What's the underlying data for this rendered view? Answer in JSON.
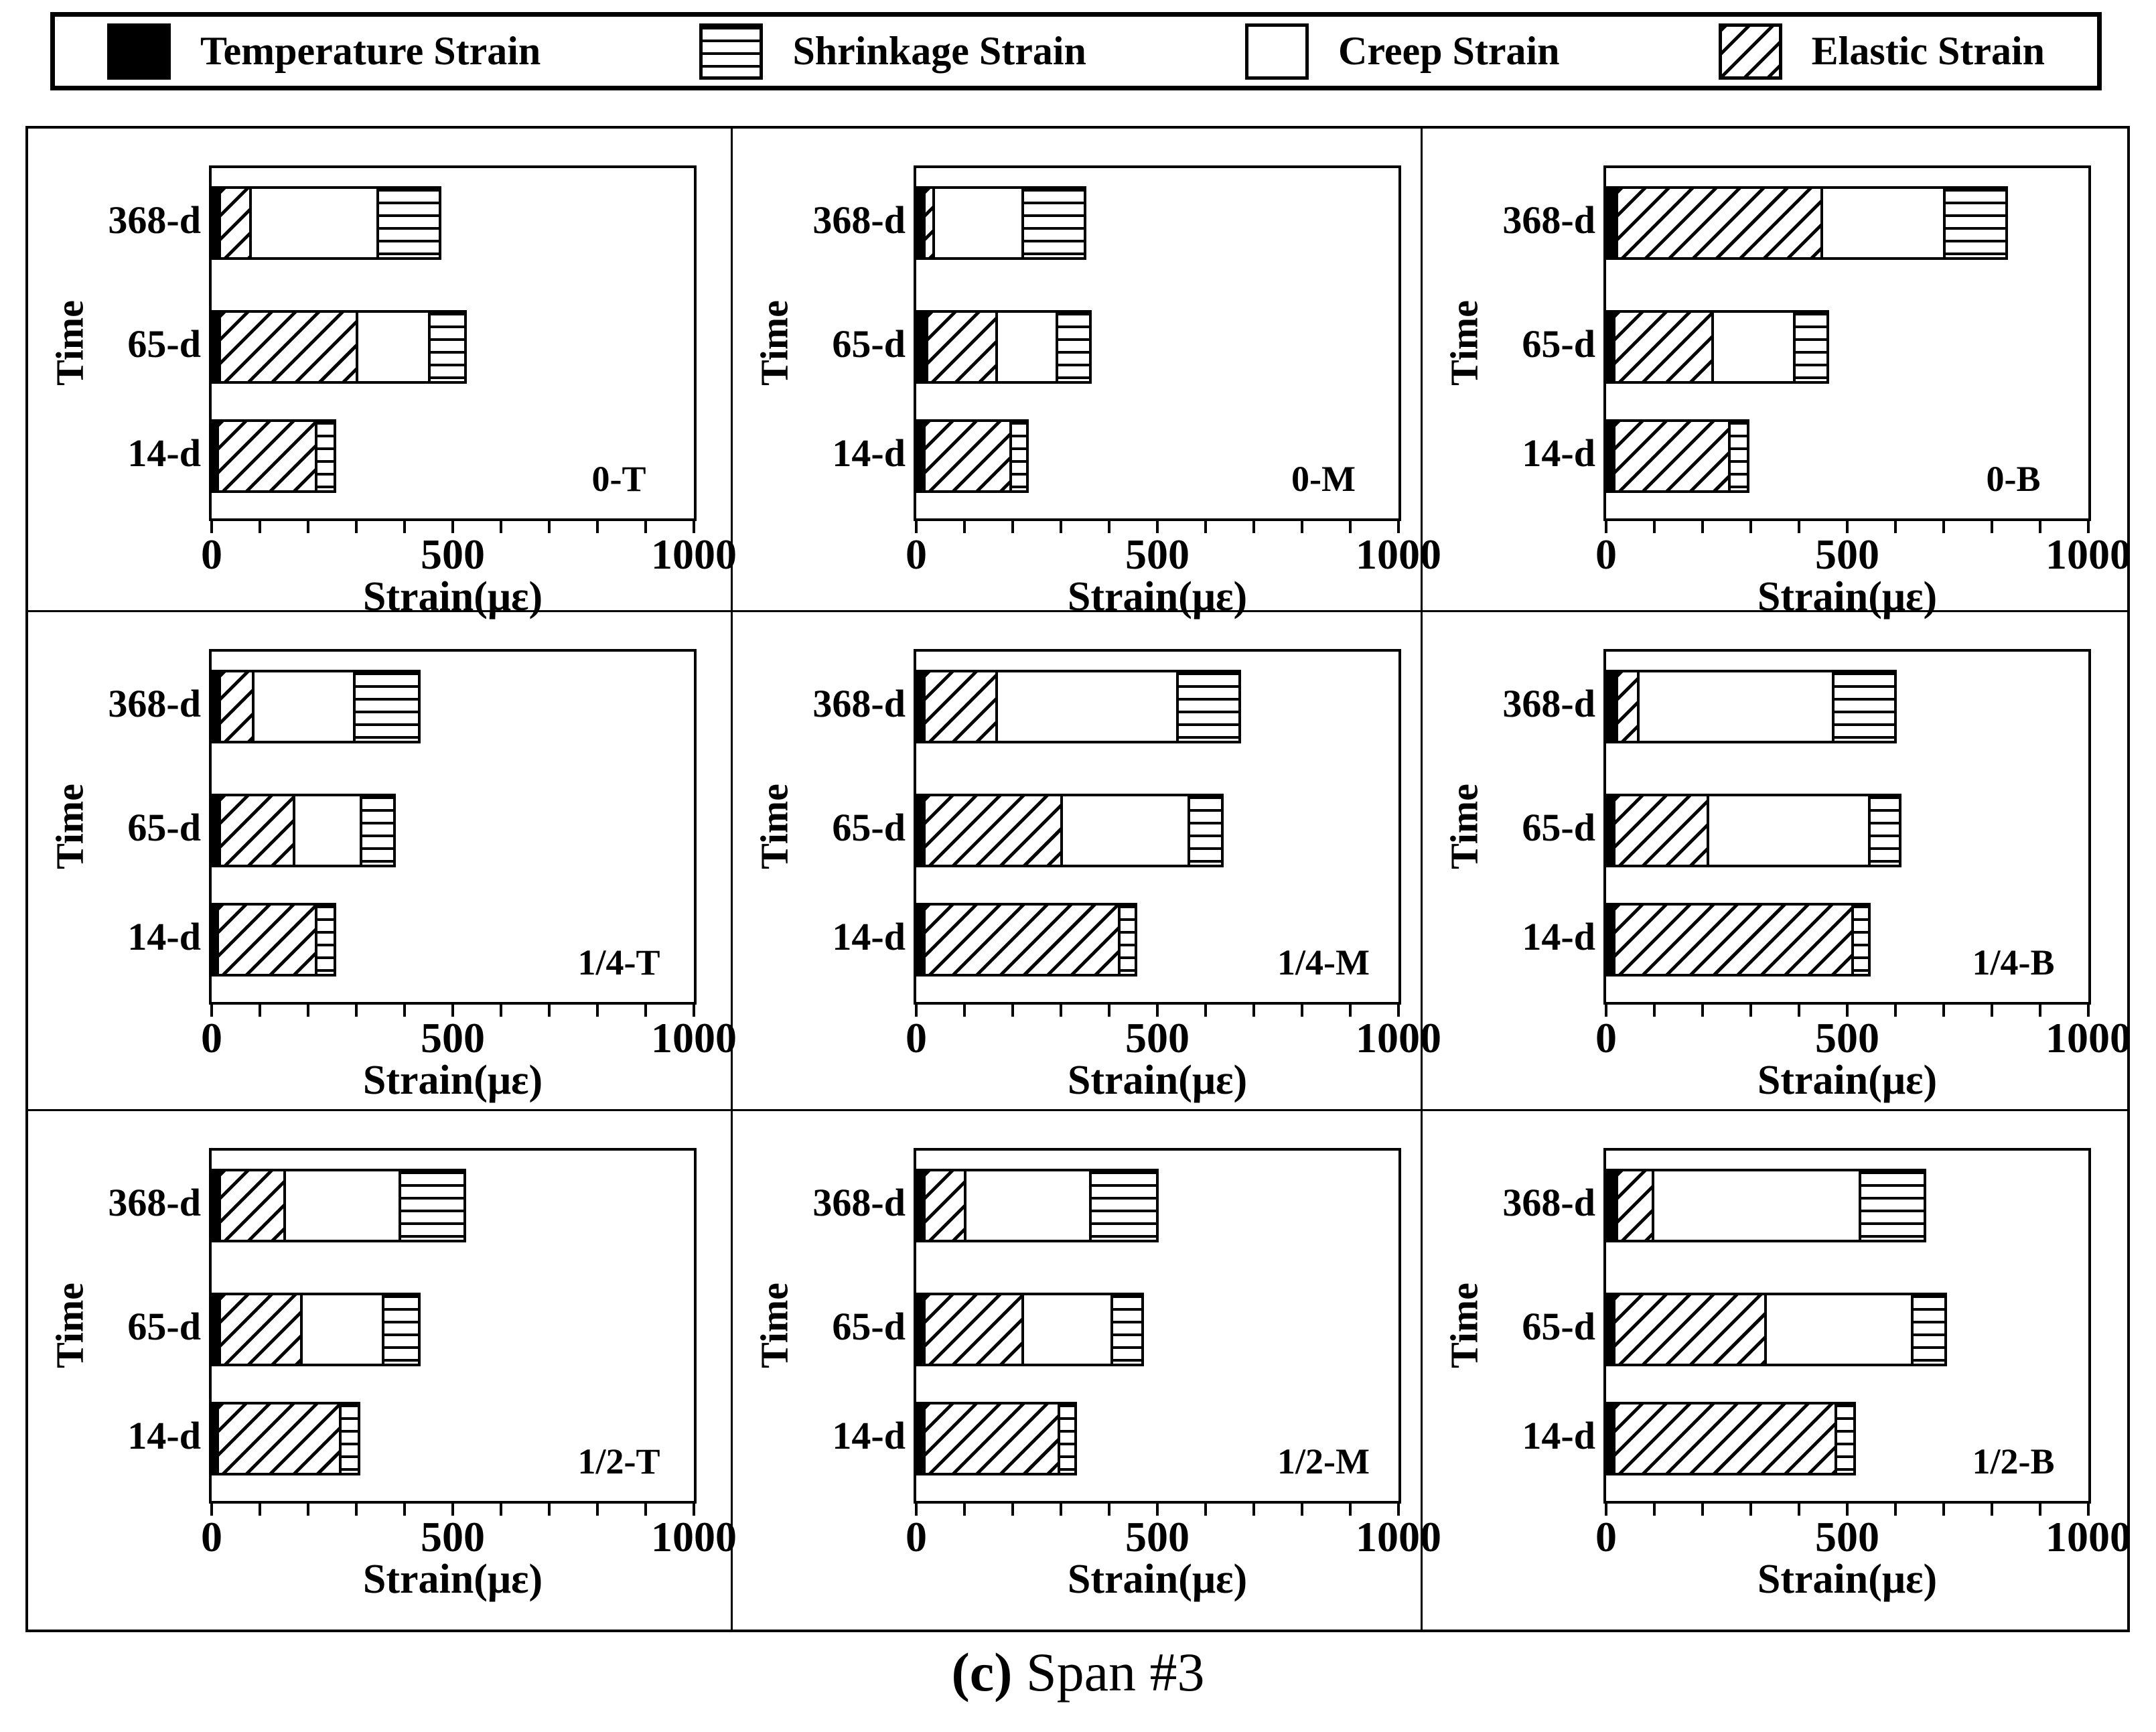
{
  "figure": {
    "caption": {
      "prefix": "(c)",
      "text": " Span #3"
    }
  },
  "colors": {
    "ink": "#000000",
    "background": "#ffffff"
  },
  "legend": {
    "items": [
      {
        "label": "Temperature Strain",
        "pattern": "solid-black"
      },
      {
        "label": "Shrinkage Strain",
        "pattern": "horizontal-lines"
      },
      {
        "label": "Creep Strain",
        "pattern": "plain-white"
      },
      {
        "label": "Elastic Strain",
        "pattern": "diagonal-hatch"
      }
    ]
  },
  "axis": {
    "xlabel": "Strain(με)",
    "ylabel": "Time",
    "x_tick_labels": [
      "0",
      "500",
      "1000"
    ],
    "xlim": [
      0,
      1000
    ],
    "minor_tick_step": 100,
    "categories": [
      "368-d",
      "65-d",
      "14-d"
    ]
  },
  "chart_data": [
    {
      "type": "bar",
      "orientation": "horizontal",
      "stacked": true,
      "panel": "0-T",
      "categories": [
        "368-d",
        "65-d",
        "14-d"
      ],
      "series": [
        {
          "name": "Temperature Strain",
          "values": [
            20,
            20,
            15
          ]
        },
        {
          "name": "Elastic Strain",
          "values": [
            70,
            290,
            210
          ]
        },
        {
          "name": "Creep Strain",
          "values": [
            270,
            155,
            0
          ]
        },
        {
          "name": "Shrinkage Strain",
          "values": [
            135,
            80,
            45
          ]
        }
      ],
      "xlabel": "Strain(με)",
      "ylabel": "Time",
      "xlim": [
        0,
        1000
      ],
      "x_ticks": [
        0,
        500,
        1000
      ]
    },
    {
      "type": "bar",
      "orientation": "horizontal",
      "stacked": true,
      "panel": "0-M",
      "categories": [
        "368-d",
        "65-d",
        "14-d"
      ],
      "series": [
        {
          "name": "Temperature Strain",
          "values": [
            20,
            25,
            20
          ]
        },
        {
          "name": "Elastic Strain",
          "values": [
            25,
            150,
            185
          ]
        },
        {
          "name": "Creep Strain",
          "values": [
            190,
            130,
            0
          ]
        },
        {
          "name": "Shrinkage Strain",
          "values": [
            135,
            75,
            40
          ]
        }
      ],
      "xlabel": "Strain(με)",
      "ylabel": "Time",
      "xlim": [
        0,
        1000
      ],
      "x_ticks": [
        0,
        500,
        1000
      ]
    },
    {
      "type": "bar",
      "orientation": "horizontal",
      "stacked": true,
      "panel": "0-B",
      "categories": [
        "368-d",
        "65-d",
        "14-d"
      ],
      "series": [
        {
          "name": "Temperature Strain",
          "values": [
            25,
            20,
            20
          ]
        },
        {
          "name": "Elastic Strain",
          "values": [
            430,
            210,
            245
          ]
        },
        {
          "name": "Creep Strain",
          "values": [
            260,
            175,
            0
          ]
        },
        {
          "name": "Shrinkage Strain",
          "values": [
            135,
            75,
            45
          ]
        }
      ],
      "xlabel": "Strain(με)",
      "ylabel": "Time",
      "xlim": [
        0,
        1000
      ],
      "x_ticks": [
        0,
        500,
        1000
      ]
    },
    {
      "type": "bar",
      "orientation": "horizontal",
      "stacked": true,
      "panel": "1/4-T",
      "categories": [
        "368-d",
        "65-d",
        "14-d"
      ],
      "series": [
        {
          "name": "Temperature Strain",
          "values": [
            20,
            20,
            15
          ]
        },
        {
          "name": "Elastic Strain",
          "values": [
            75,
            160,
            210
          ]
        },
        {
          "name": "Creep Strain",
          "values": [
            215,
            145,
            0
          ]
        },
        {
          "name": "Shrinkage Strain",
          "values": [
            140,
            75,
            45
          ]
        }
      ],
      "xlabel": "Strain(με)",
      "ylabel": "Time",
      "xlim": [
        0,
        1000
      ],
      "x_ticks": [
        0,
        500,
        1000
      ]
    },
    {
      "type": "bar",
      "orientation": "horizontal",
      "stacked": true,
      "panel": "1/4-M",
      "categories": [
        "368-d",
        "65-d",
        "14-d"
      ],
      "series": [
        {
          "name": "Temperature Strain",
          "values": [
            20,
            20,
            20
          ]
        },
        {
          "name": "Elastic Strain",
          "values": [
            155,
            290,
            410
          ]
        },
        {
          "name": "Creep Strain",
          "values": [
            380,
            270,
            0
          ]
        },
        {
          "name": "Shrinkage Strain",
          "values": [
            135,
            75,
            40
          ]
        }
      ],
      "xlabel": "Strain(με)",
      "ylabel": "Time",
      "xlim": [
        0,
        1000
      ],
      "x_ticks": [
        0,
        500,
        1000
      ]
    },
    {
      "type": "bar",
      "orientation": "horizontal",
      "stacked": true,
      "panel": "1/4-B",
      "categories": [
        "368-d",
        "65-d",
        "14-d"
      ],
      "series": [
        {
          "name": "Temperature Strain",
          "values": [
            25,
            20,
            20
          ]
        },
        {
          "name": "Elastic Strain",
          "values": [
            50,
            200,
            500
          ]
        },
        {
          "name": "Creep Strain",
          "values": [
            410,
            340,
            0
          ]
        },
        {
          "name": "Shrinkage Strain",
          "values": [
            135,
            70,
            40
          ]
        }
      ],
      "xlabel": "Strain(με)",
      "ylabel": "Time",
      "xlim": [
        0,
        1000
      ],
      "x_ticks": [
        0,
        500,
        1000
      ]
    },
    {
      "type": "bar",
      "orientation": "horizontal",
      "stacked": true,
      "panel": "1/2-T",
      "categories": [
        "368-d",
        "65-d",
        "14-d"
      ],
      "series": [
        {
          "name": "Temperature Strain",
          "values": [
            20,
            20,
            15
          ]
        },
        {
          "name": "Elastic Strain",
          "values": [
            140,
            175,
            260
          ]
        },
        {
          "name": "Creep Strain",
          "values": [
            245,
            175,
            0
          ]
        },
        {
          "name": "Shrinkage Strain",
          "values": [
            140,
            80,
            45
          ]
        }
      ],
      "xlabel": "Strain(με)",
      "ylabel": "Time",
      "xlim": [
        0,
        1000
      ],
      "x_ticks": [
        0,
        500,
        1000
      ]
    },
    {
      "type": "bar",
      "orientation": "horizontal",
      "stacked": true,
      "panel": "1/2-M",
      "categories": [
        "368-d",
        "65-d",
        "14-d"
      ],
      "series": [
        {
          "name": "Temperature Strain",
          "values": [
            20,
            20,
            20
          ]
        },
        {
          "name": "Elastic Strain",
          "values": [
            90,
            210,
            285
          ]
        },
        {
          "name": "Creep Strain",
          "values": [
            265,
            190,
            0
          ]
        },
        {
          "name": "Shrinkage Strain",
          "values": [
            145,
            70,
            40
          ]
        }
      ],
      "xlabel": "Strain(με)",
      "ylabel": "Time",
      "xlim": [
        0,
        1000
      ],
      "x_ticks": [
        0,
        500,
        1000
      ]
    },
    {
      "type": "bar",
      "orientation": "horizontal",
      "stacked": true,
      "panel": "1/2-B",
      "categories": [
        "368-d",
        "65-d",
        "14-d"
      ],
      "series": [
        {
          "name": "Temperature Strain",
          "values": [
            25,
            20,
            20
          ]
        },
        {
          "name": "Elastic Strain",
          "values": [
            80,
            320,
            465
          ]
        },
        {
          "name": "Creep Strain",
          "values": [
            435,
            310,
            0
          ]
        },
        {
          "name": "Shrinkage Strain",
          "values": [
            140,
            75,
            45
          ]
        }
      ],
      "xlabel": "Strain(με)",
      "ylabel": "Time",
      "xlim": [
        0,
        1000
      ],
      "x_ticks": [
        0,
        500,
        1000
      ]
    }
  ]
}
